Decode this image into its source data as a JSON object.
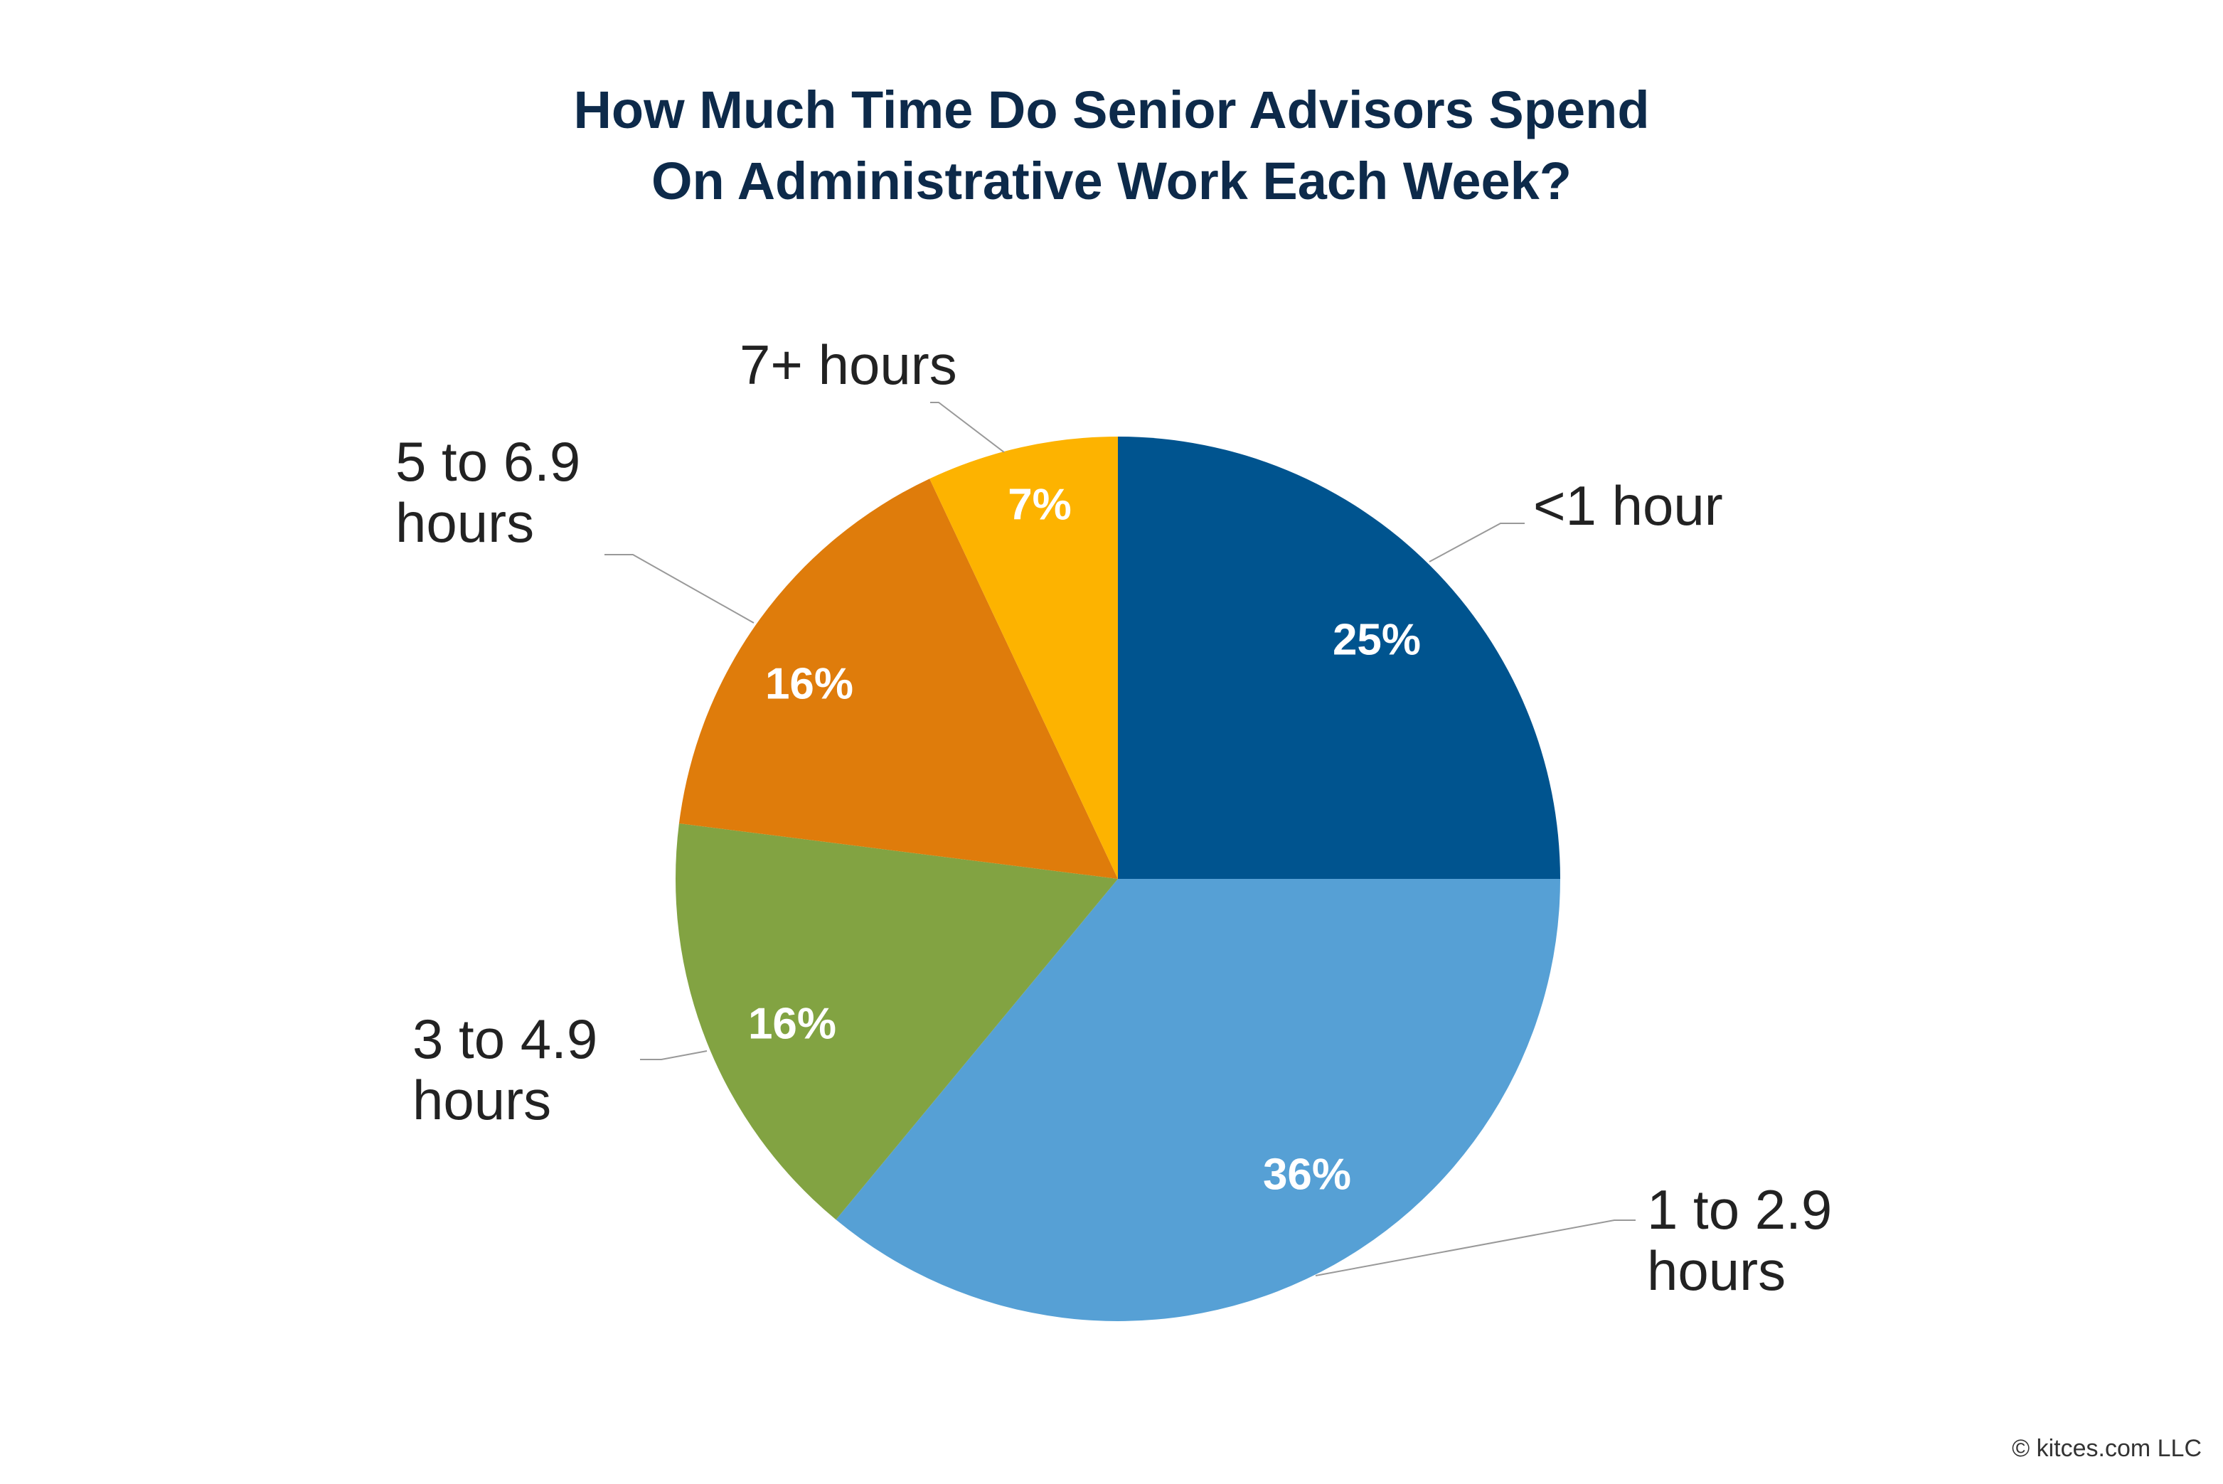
{
  "chart_data": {
    "type": "pie",
    "title": [
      "How Much Time Do Senior Advisors Spend",
      "On Administrative Work Each Week?"
    ],
    "categories": [
      "<1 hour",
      "1 to 2.9 hours",
      "3 to 4.9 hours",
      "5 to 6.9 hours",
      "7+ hours"
    ],
    "values": [
      25,
      36,
      16,
      16,
      7
    ],
    "value_labels": [
      "25%",
      "36%",
      "16%",
      "16%",
      "7%"
    ],
    "colors": [
      "#00548f",
      "#56a0d5",
      "#82a342",
      "#df7c0b",
      "#fdb300"
    ],
    "footer": "© kitces.com LLC"
  }
}
